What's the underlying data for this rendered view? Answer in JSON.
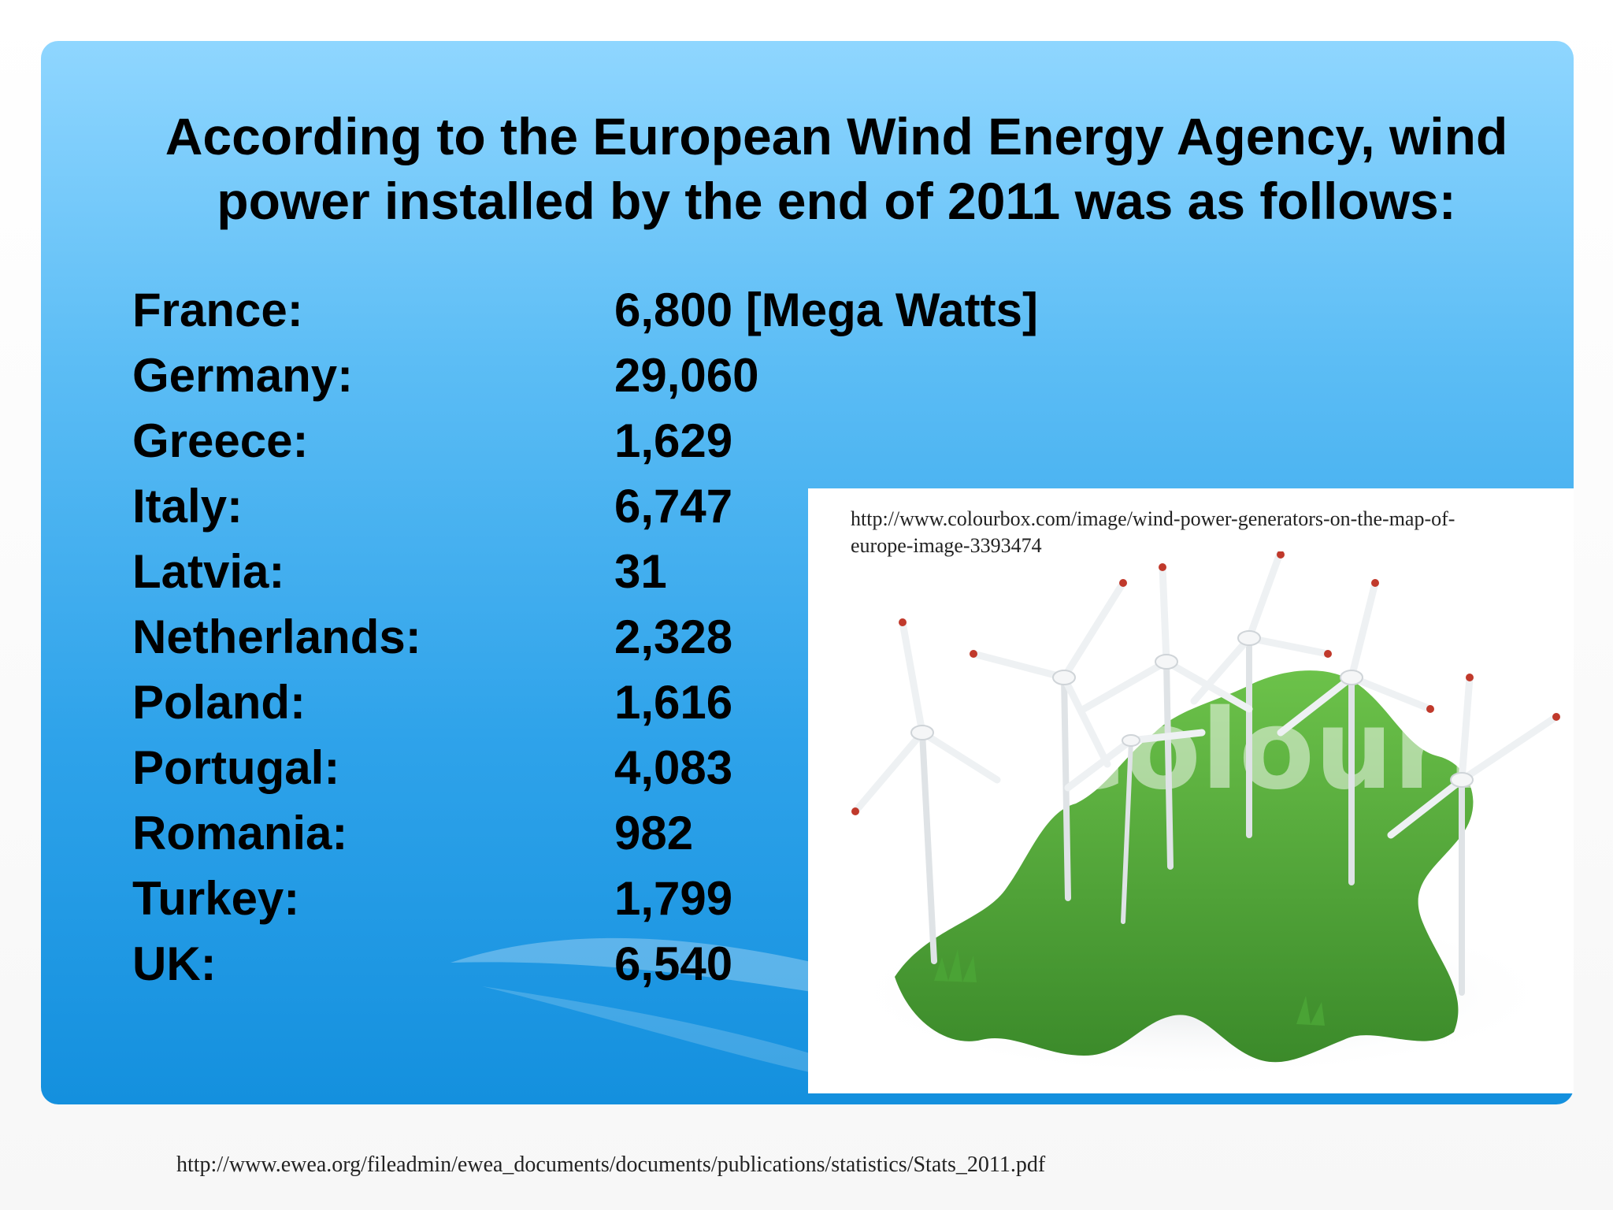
{
  "slide": {
    "title": "According to the European Wind Energy Agency, wind power installed by the end of 2011 was as follows:",
    "stats": [
      {
        "country": "France:",
        "value": "6,800 [Mega Watts]"
      },
      {
        "country": "Germany:",
        "value": "29,060"
      },
      {
        "country": "Greece:",
        "value": "1,629"
      },
      {
        "country": "Italy:",
        "value": "6,747"
      },
      {
        "country": "Latvia:",
        "value": "31"
      },
      {
        "country": "Netherlands:",
        "value": "2,328"
      },
      {
        "country": "Poland:",
        "value": "1,616"
      },
      {
        "country": "Portugal:",
        "value": "4,083"
      },
      {
        "country": "Romania:",
        "value": "982"
      },
      {
        "country": "Turkey:",
        "value": "1,799"
      },
      {
        "country": "UK:",
        "value": "6,540"
      }
    ],
    "image": {
      "caption": "http://www.colourbox.com/image/wind-power-generators-on-the-map-of-europe-image-3393474",
      "watermark": "Colourbox",
      "description_icon": "wind-turbines-on-grass-europe-map"
    },
    "source": "http://www.ewea.org/fileadmin/ewea_documents/documents/publications/statistics/Stats_2011.pdf"
  },
  "colors": {
    "panel_top": "#8fd6ff",
    "panel_bottom": "#1490de",
    "grass": "#4fa83a",
    "turbine": "#e6e9ec",
    "turbine_tip": "#c0392b"
  }
}
